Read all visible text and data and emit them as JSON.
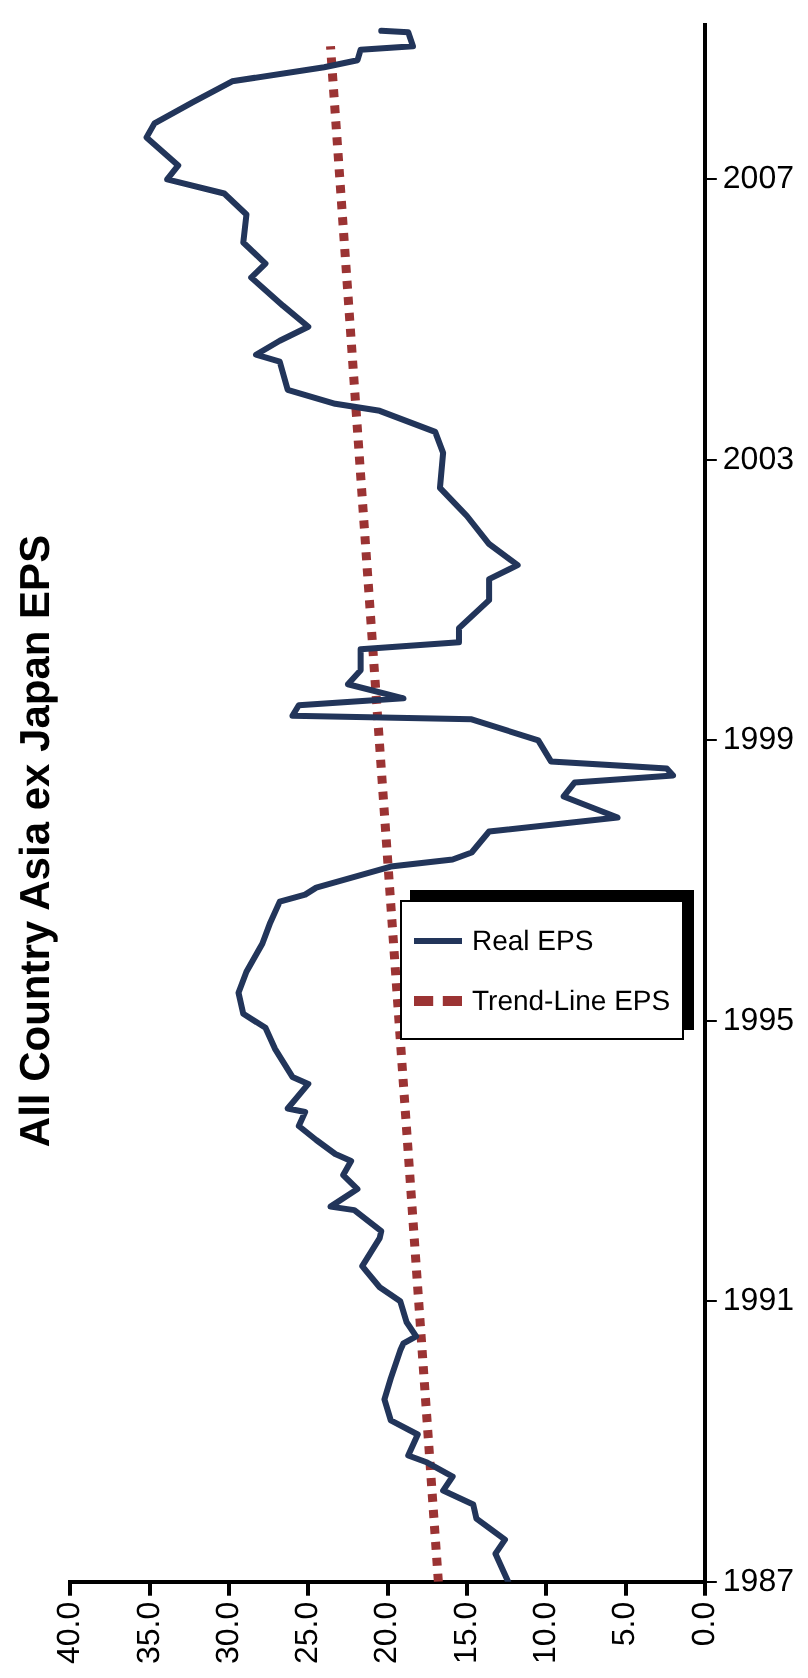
{
  "chart_data": {
    "type": "line",
    "title": "All Country Asia ex Japan EPS",
    "ylim": [
      1987,
      2009.2
    ],
    "yticks": [
      1987,
      1991,
      1995,
      1999,
      2003,
      2007
    ],
    "xlim": [
      40,
      0
    ],
    "xticks": [
      {
        "value": 40,
        "label": "40.0"
      },
      {
        "value": 35,
        "label": "35.0"
      },
      {
        "value": 30,
        "label": "30.0"
      },
      {
        "value": 25,
        "label": "25.0"
      },
      {
        "value": 20,
        "label": "20.0"
      },
      {
        "value": 15,
        "label": "15.0"
      },
      {
        "value": 10,
        "label": "10.0"
      },
      {
        "value": 5,
        "label": "5.0"
      },
      {
        "value": 0,
        "label": "0.0"
      }
    ],
    "grid": false,
    "legend": "right",
    "marker": "none",
    "series": [
      {
        "name": "Real EPS",
        "color": "#22355a",
        "line_style": "solid",
        "values": [
          1987.0,
          1987.4,
          1987.6,
          1987.9,
          1988.1,
          1988.3,
          1988.5,
          1988.7,
          1988.8,
          1989.1,
          1989.3,
          1989.6,
          1989.9,
          1990.3,
          1990.4,
          1990.5,
          1990.7,
          1991.0,
          1991.2,
          1991.5,
          1991.9,
          1992.0,
          1992.3,
          1992.35,
          1992.6,
          1992.8,
          1993.0,
          1993.1,
          1993.3,
          1993.5,
          1993.7,
          1993.75,
          1994.1,
          1994.2,
          1994.6,
          1994.9,
          1995.1,
          1995.4,
          1995.7,
          1996.1,
          1996.4,
          1996.7,
          1996.8,
          1996.9,
          1997.2,
          1997.3,
          1997.4,
          1997.7,
          1997.9,
          1998.2,
          1998.4,
          1998.5,
          1998.6,
          1998.7,
          1999.0,
          1999.3,
          1999.35,
          1999.5,
          1999.6,
          1999.8,
          2000.0,
          2000.3,
          2000.4,
          2000.6,
          2001.0,
          2001.3,
          2001.5,
          2001.8,
          2002.2,
          2002.6,
          2003.1,
          2003.4,
          2003.7,
          2003.8,
          2004.0,
          2004.4,
          2004.5,
          2004.7,
          2004.9,
          2005.2,
          2005.6,
          2005.8,
          2006.1,
          2006.5,
          2006.8,
          2007.0,
          2007.2,
          2007.6,
          2007.8,
          2008.1,
          2008.4,
          2008.6,
          2008.7,
          2008.85,
          2008.9,
          2009.1,
          2009.12
        ],
        "x": [
          12.4,
          13.2,
          12.6,
          14.4,
          14.6,
          16.5,
          15.9,
          17.5,
          18.7,
          18.1,
          19.8,
          20.2,
          19.8,
          19.2,
          19.0,
          18.2,
          18.8,
          19.2,
          20.5,
          21.6,
          20.5,
          20.4,
          22.1,
          23.6,
          21.9,
          22.8,
          22.3,
          23.3,
          24.5,
          25.6,
          25.2,
          26.3,
          25.0,
          26.0,
          27.1,
          27.7,
          29.1,
          29.4,
          28.9,
          27.9,
          27.4,
          26.8,
          25.2,
          24.5,
          19.8,
          15.9,
          14.7,
          13.6,
          5.5,
          8.9,
          8.2,
          2.0,
          2.4,
          9.7,
          10.5,
          14.7,
          26.0,
          25.6,
          19.0,
          22.5,
          21.7,
          21.7,
          15.5,
          15.5,
          13.6,
          13.6,
          11.8,
          13.6,
          15.0,
          16.7,
          16.5,
          17.0,
          20.5,
          23.3,
          26.3,
          26.8,
          28.3,
          26.8,
          25.0,
          26.6,
          28.6,
          27.7,
          29.1,
          28.9,
          30.3,
          33.9,
          33.2,
          35.2,
          34.7,
          32.3,
          29.8,
          24.0,
          21.9,
          21.7,
          18.4,
          18.7,
          20.4
        ]
      },
      {
        "name": "Trend-Line EPS",
        "color": "#9b3333",
        "line_style": "dotted",
        "values": [
          1987,
          2008.9
        ],
        "x": [
          16.8,
          23.6
        ]
      }
    ]
  }
}
